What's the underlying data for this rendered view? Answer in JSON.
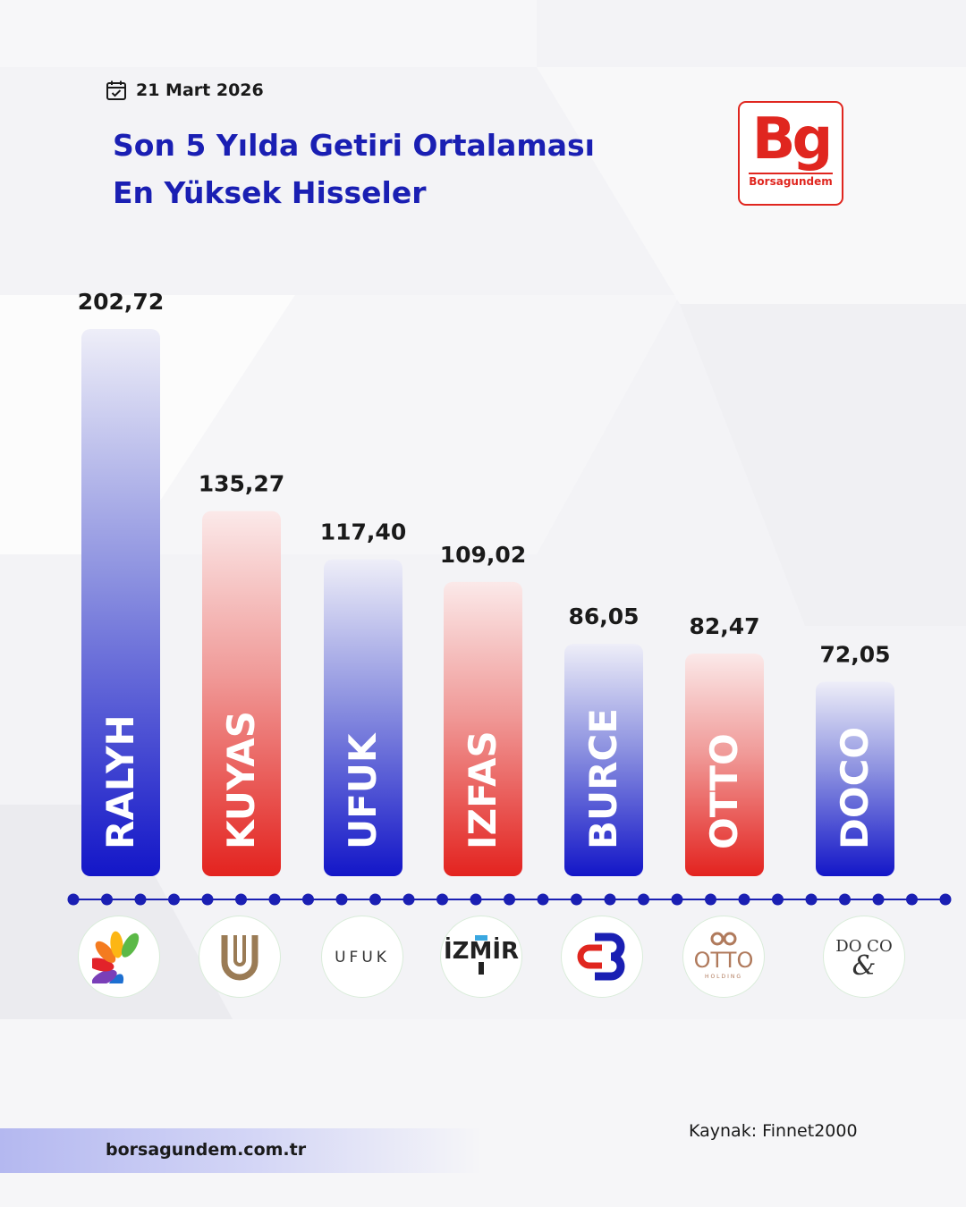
{
  "header": {
    "date": "21 Mart 2026",
    "title_line1": "Son 5 Yılda Getiri Ortalaması",
    "title_line2": "En Yüksek Hisseler"
  },
  "brand": {
    "logo_mark": "Bg",
    "logo_name": "Borsagundem",
    "website": "borsagundem.com.tr",
    "red": "#e0261f",
    "blue": "#1a1fb3"
  },
  "source": "Kaynak: Finnet2000",
  "chart_data": {
    "type": "bar",
    "categories": [
      "RALYH",
      "KUYAS",
      "UFUK",
      "IZFAS",
      "BURCE",
      "OTTO",
      "DOCO"
    ],
    "values": [
      202.72,
      135.27,
      117.4,
      109.02,
      86.05,
      82.47,
      72.05
    ],
    "value_labels": [
      "202,72",
      "135,27",
      "117,40",
      "109,02",
      "86,05",
      "82,47",
      "72,05"
    ],
    "bar_colors": [
      "blue",
      "red",
      "blue",
      "red",
      "blue",
      "red",
      "blue"
    ],
    "ylim": [
      0,
      210
    ],
    "grid": false,
    "legend": "none"
  },
  "company_logos": [
    {
      "ticker": "RALYH",
      "icon": "peacock-fan-icon"
    },
    {
      "ticker": "KUYAS",
      "icon": "u-monogram-icon"
    },
    {
      "ticker": "UFUK",
      "icon": "ufuk-wordmark",
      "text": "UFUK"
    },
    {
      "ticker": "IZFAS",
      "icon": "izmir-wordmark",
      "text": "İZMİR"
    },
    {
      "ticker": "BURCE",
      "icon": "b-monogram-icon"
    },
    {
      "ticker": "OTTO",
      "icon": "otto-holding-wordmark",
      "text": "OTTO",
      "subtext": "HOLDING"
    },
    {
      "ticker": "DOCO",
      "icon": "do-and-co-wordmark",
      "text": "DO & CO"
    }
  ]
}
